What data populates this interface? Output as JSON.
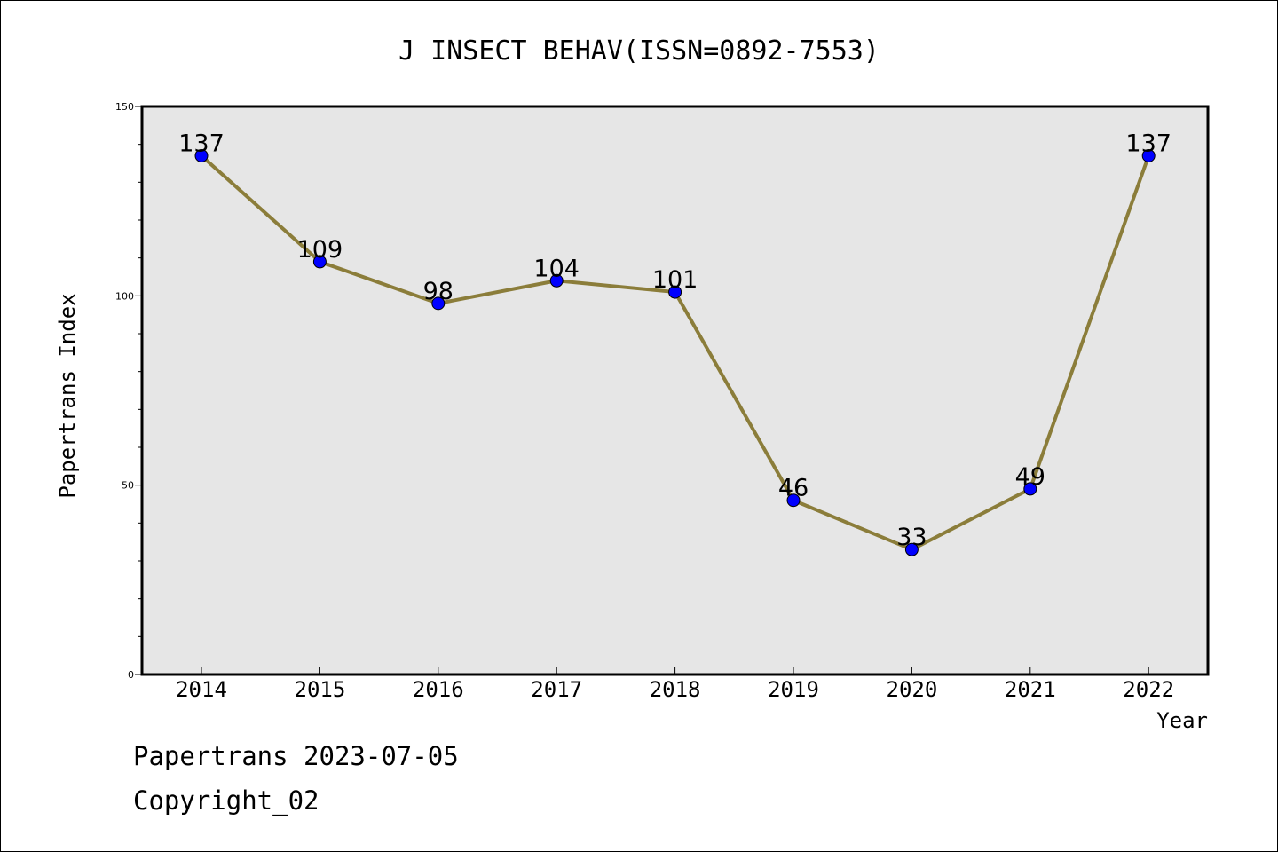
{
  "chart_data": {
    "type": "line",
    "title": "J INSECT BEHAV(ISSN=0892-7553)",
    "xlabel": "Year",
    "ylabel": "Papertrans Index",
    "categories": [
      "2014",
      "2015",
      "2016",
      "2017",
      "2018",
      "2019",
      "2020",
      "2021",
      "2022"
    ],
    "series": [
      {
        "values": [
          137,
          109,
          98,
          104,
          101,
          46,
          33,
          49,
          137
        ]
      }
    ],
    "ylim": [
      0,
      150
    ],
    "y_major_ticks": [
      "0",
      "50",
      "100",
      "150"
    ],
    "y_minor_step": 10,
    "grid": false,
    "data_labels": true,
    "colors": {
      "line": "#8b7d3a",
      "marker": "#0000ff",
      "plot_bg": "#e6e6e6"
    }
  },
  "footer": {
    "date_line": "Papertrans 2023-07-05",
    "copyright_line": "Copyright_02"
  }
}
